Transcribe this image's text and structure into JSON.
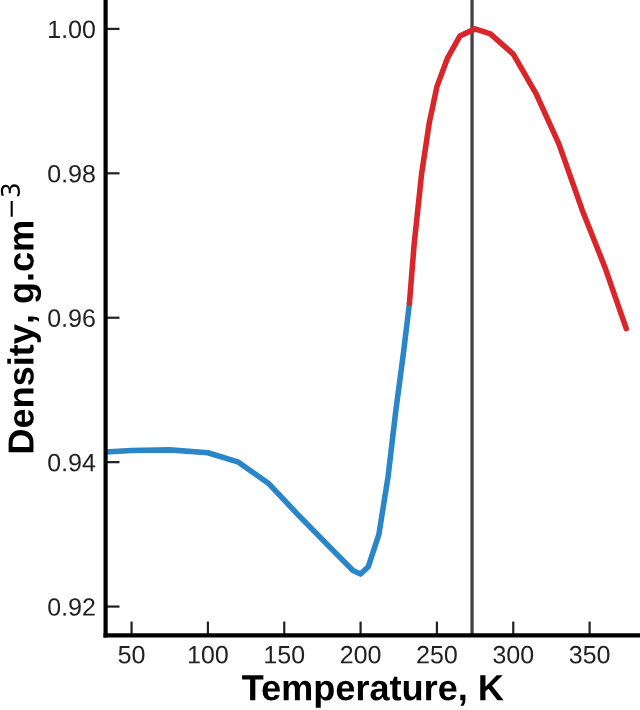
{
  "chart_data": {
    "type": "line",
    "xlabel": "Temperature, K",
    "ylabel": "Density, g.cm$^{−3}$",
    "xlim": [
      33,
      383
    ],
    "ylim": [
      0.916,
      1.004
    ],
    "xticks": [
      50,
      100,
      150,
      200,
      250,
      300,
      350
    ],
    "yticks": [
      0.92,
      0.94,
      0.96,
      0.98,
      {
        "value": 1.0,
        "label": "1.00"
      }
    ],
    "grid": false,
    "legend": false,
    "marker": "none",
    "line_style": "solid",
    "ref_lines": [
      {
        "axis": "x",
        "value": 273,
        "color": "#444444"
      }
    ],
    "series": [
      {
        "color": "#2a86c8",
        "x": [
          33,
          50,
          75,
          100,
          120,
          140,
          160,
          180,
          195,
          200,
          205,
          212,
          218,
          223,
          228,
          232
        ],
        "values": [
          0.9414,
          0.9416,
          0.9417,
          0.9413,
          0.94,
          0.937,
          0.9325,
          0.9282,
          0.925,
          0.9245,
          0.9255,
          0.93,
          0.938,
          0.947,
          0.955,
          0.962
        ]
      },
      {
        "color": "#d9262b",
        "x": [
          232,
          235,
          240,
          245,
          250,
          257,
          265,
          275,
          285,
          300,
          315,
          330,
          345,
          360,
          374
        ],
        "values": [
          0.962,
          0.97,
          0.98,
          0.987,
          0.992,
          0.996,
          0.999,
          1.0,
          0.9993,
          0.9965,
          0.991,
          0.984,
          0.975,
          0.967,
          0.9585
        ]
      }
    ]
  }
}
